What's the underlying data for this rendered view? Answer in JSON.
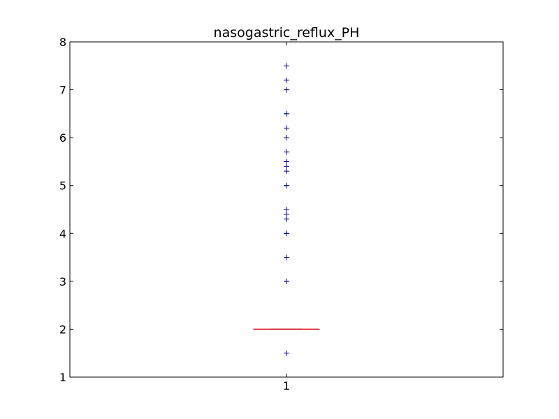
{
  "chart_data": {
    "type": "boxplot",
    "title": "nasogastric_reflux_PH",
    "xlabel": "",
    "ylabel": "",
    "categories": [
      "1"
    ],
    "ylim": [
      1,
      8
    ],
    "yticks": [
      "1",
      "2",
      "3",
      "4",
      "5",
      "6",
      "7",
      "8"
    ],
    "grid": false,
    "box": {
      "q1": 2,
      "median": 2,
      "q3": 2,
      "whisker_low": 2,
      "whisker_high": 2
    },
    "outliers": [
      1.5,
      3,
      3,
      3.5,
      4,
      4,
      4.3,
      4.4,
      4.5,
      4.5,
      5,
      5,
      5.3,
      5.4,
      5.5,
      5.5,
      5.7,
      6,
      6.2,
      6.5,
      6.5,
      7,
      7,
      7.2,
      7.5
    ],
    "colors": {
      "box": "#00008b",
      "median": "#ff0000",
      "outlier": "#00008b"
    }
  }
}
